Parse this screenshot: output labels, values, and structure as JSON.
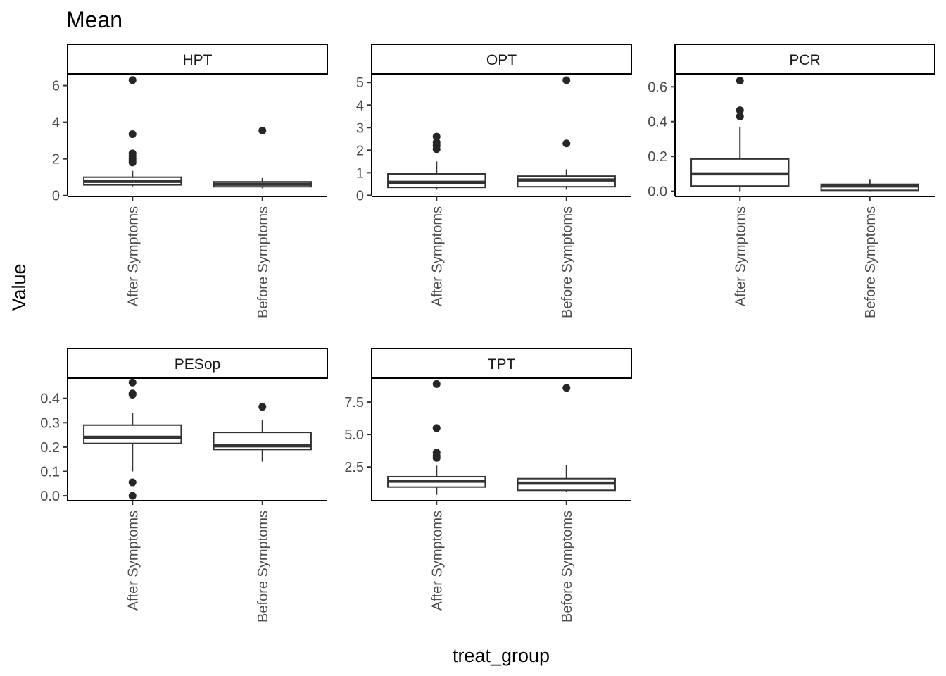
{
  "chart_data": {
    "type": "boxplot",
    "title": "Mean",
    "xlabel": "treat_group",
    "ylabel": "Value",
    "categories": [
      "After Symptoms",
      "Before Symptoms"
    ],
    "panels": [
      {
        "strip": "HPT",
        "ylim": [
          -0.05,
          6.6
        ],
        "ticks": [
          0,
          2,
          4,
          6
        ],
        "tick_labels": [
          "0",
          "2",
          "4",
          "6"
        ],
        "boxes": [
          {
            "group": "After Symptoms",
            "min": 0.5,
            "q1": 0.58,
            "median": 0.77,
            "q3": 1.0,
            "max": 1.35,
            "outliers": [
              1.8,
              1.9,
              2.0,
              2.15,
              2.3,
              3.35,
              6.3
            ]
          },
          {
            "group": "Before Symptoms",
            "min": 0.4,
            "q1": 0.48,
            "median": 0.62,
            "q3": 0.75,
            "max": 0.95,
            "outliers": [
              3.55
            ]
          }
        ]
      },
      {
        "strip": "OPT",
        "ylim": [
          -0.05,
          5.35
        ],
        "ticks": [
          0,
          1,
          2,
          3,
          4,
          5
        ],
        "tick_labels": [
          "0",
          "1",
          "2",
          "3",
          "4",
          "5"
        ],
        "boxes": [
          {
            "group": "After Symptoms",
            "min": 0.25,
            "q1": 0.35,
            "median": 0.58,
            "q3": 0.95,
            "max": 1.5,
            "outliers": [
              2.05,
              2.2,
              2.35,
              2.6
            ]
          },
          {
            "group": "Before Symptoms",
            "min": 0.25,
            "q1": 0.38,
            "median": 0.68,
            "q3": 0.85,
            "max": 1.15,
            "outliers": [
              2.3,
              5.1
            ]
          }
        ]
      },
      {
        "strip": "PCR",
        "ylim": [
          -0.03,
          0.67
        ],
        "ticks": [
          0.0,
          0.2,
          0.4,
          0.6
        ],
        "tick_labels": [
          "0.0",
          "0.2",
          "0.4",
          "0.6"
        ],
        "boxes": [
          {
            "group": "After Symptoms",
            "min": 0.0,
            "q1": 0.03,
            "median": 0.1,
            "q3": 0.185,
            "max": 0.37,
            "outliers": [
              0.43,
              0.465,
              0.635
            ]
          },
          {
            "group": "Before Symptoms",
            "min": 0.0,
            "q1": 0.005,
            "median": 0.03,
            "q3": 0.04,
            "max": 0.07,
            "outliers": []
          }
        ]
      },
      {
        "strip": "PESop",
        "ylim": [
          -0.02,
          0.48
        ],
        "ticks": [
          0.0,
          0.1,
          0.2,
          0.3,
          0.4
        ],
        "tick_labels": [
          "0.0",
          "0.1",
          "0.2",
          "0.3",
          "0.4"
        ],
        "boxes": [
          {
            "group": "After Symptoms",
            "min": 0.1,
            "q1": 0.215,
            "median": 0.24,
            "q3": 0.29,
            "max": 0.34,
            "outliers": [
              0.0,
              0.055,
              0.415,
              0.42,
              0.465
            ]
          },
          {
            "group": "Before Symptoms",
            "min": 0.14,
            "q1": 0.19,
            "median": 0.205,
            "q3": 0.26,
            "max": 0.31,
            "outliers": [
              0.365
            ]
          }
        ]
      },
      {
        "strip": "TPT",
        "ylim": [
          -0.1,
          9.3
        ],
        "ticks": [
          2.5,
          5.0,
          7.5
        ],
        "tick_labels": [
          "2.5",
          "5.0",
          "7.5"
        ],
        "boxes": [
          {
            "group": "After Symptoms",
            "min": 0.35,
            "q1": 0.95,
            "median": 1.4,
            "q3": 1.75,
            "max": 2.6,
            "outliers": [
              3.2,
              3.35,
              3.6,
              5.5,
              8.9
            ]
          },
          {
            "group": "Before Symptoms",
            "min": 0.6,
            "q1": 0.7,
            "median": 1.25,
            "q3": 1.6,
            "max": 2.65,
            "outliers": [
              8.6
            ]
          }
        ]
      }
    ],
    "grid": false,
    "legend": "none"
  }
}
